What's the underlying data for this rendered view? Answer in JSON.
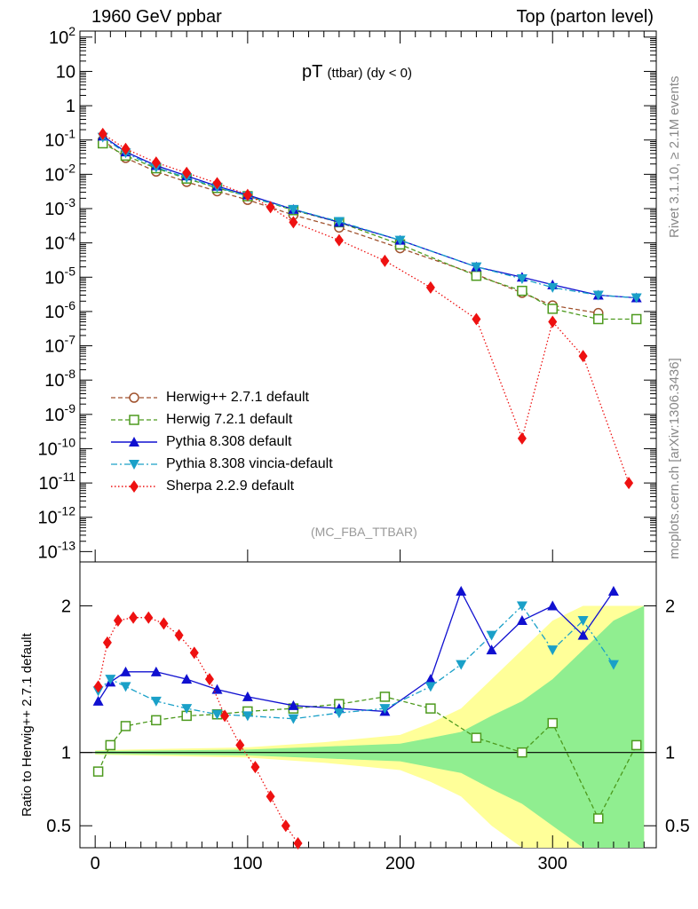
{
  "header": {
    "left": "1960 GeV ppbar",
    "right": "Top (parton level)"
  },
  "side": {
    "rivet": "Rivet 3.1.10, ≥ 2.1M events",
    "mcplots": "mcplots.cern.ch [arXiv:1306.3436]"
  },
  "title": {
    "main": "pT",
    "sub": "(ttbar) (dy < 0)"
  },
  "analysis_label": "(MC_FBA_TTBAR)",
  "ratio_ylabel": "Ratio to Herwig++ 2.7.1 default",
  "legend": [
    {
      "label": "Herwig++ 2.7.1 default",
      "color": "#a0522d",
      "marker": "circle-open",
      "line": "dashed"
    },
    {
      "label": "Herwig 7.2.1 default",
      "color": "#4d9a1e",
      "marker": "square-open",
      "line": "dashed"
    },
    {
      "label": "Pythia 8.308 default",
      "color": "#1010d0",
      "marker": "triangle-up",
      "line": "solid"
    },
    {
      "label": "Pythia 8.308 vincia-default",
      "color": "#1aa0c8",
      "marker": "triangle-down",
      "line": "dashdot"
    },
    {
      "label": "Sherpa 2.2.9 default",
      "color": "#ee1111",
      "marker": "diamond",
      "line": "dotted"
    }
  ],
  "chart_data": {
    "type": "line",
    "xlim": [
      -10,
      368
    ],
    "x_ticks": [
      "0",
      "100",
      "200",
      "300"
    ],
    "main": {
      "ylog": true,
      "ylim": [
        5e-14,
        150
      ],
      "y_ticks": [
        "10^-13",
        "10^-12",
        "10^-11",
        "10^-10",
        "10^-9",
        "10^-8",
        "10^-7",
        "10^-6",
        "10^-5",
        "10^-4",
        "10^-3",
        "10^-2",
        "10^-1",
        "1",
        "10",
        "10^2"
      ]
    },
    "ratio": {
      "ylim": [
        0.35,
        2.3
      ],
      "y_ticks": [
        "0.5",
        "1",
        "2"
      ],
      "reference": 1
    },
    "series": [
      {
        "name": "Herwig++ 2.7.1 default",
        "x": [
          5,
          20,
          40,
          60,
          80,
          100,
          130,
          160,
          200,
          250,
          280,
          300,
          330
        ],
        "y": [
          0.1,
          0.03,
          0.012,
          0.006,
          0.0032,
          0.0018,
          0.00065,
          0.00028,
          7e-05,
          1.2e-05,
          3.5e-06,
          1.5e-06,
          9e-07
        ]
      },
      {
        "name": "Herwig 7.2.1 default",
        "x": [
          5,
          20,
          40,
          60,
          80,
          100,
          130,
          160,
          200,
          250,
          280,
          300,
          330,
          355
        ],
        "y": [
          0.08,
          0.035,
          0.015,
          0.0075,
          0.004,
          0.0023,
          0.0009,
          0.0004,
          9e-05,
          1.1e-05,
          4e-06,
          1.2e-06,
          6e-07,
          6e-07
        ]
      },
      {
        "name": "Pythia 8.308 default",
        "x": [
          5,
          20,
          40,
          60,
          80,
          100,
          130,
          160,
          200,
          250,
          280,
          300,
          330,
          355
        ],
        "y": [
          0.13,
          0.045,
          0.018,
          0.009,
          0.0045,
          0.0025,
          0.00095,
          0.0004,
          0.00012,
          2e-05,
          1e-05,
          6e-06,
          3e-06,
          2.5e-06
        ]
      },
      {
        "name": "Pythia 8.308 vincia-default",
        "x": [
          5,
          20,
          40,
          60,
          80,
          100,
          130,
          160,
          200,
          250,
          280,
          300,
          330,
          355
        ],
        "y": [
          0.12,
          0.042,
          0.016,
          0.008,
          0.0042,
          0.0023,
          0.00095,
          0.00042,
          0.00012,
          2e-05,
          9e-06,
          5e-06,
          3e-06,
          2.5e-06
        ]
      },
      {
        "name": "Sherpa 2.2.9 default",
        "x": [
          5,
          20,
          40,
          60,
          80,
          100,
          115,
          130,
          160,
          190,
          220,
          250,
          280,
          300,
          320,
          350
        ],
        "y": [
          0.15,
          0.055,
          0.022,
          0.011,
          0.0055,
          0.0025,
          0.0011,
          0.0004,
          0.00012,
          3e-05,
          5e-06,
          6e-07,
          2e-10,
          5e-07,
          5e-08,
          1e-11
        ]
      }
    ],
    "ratio_series": [
      {
        "name": "Herwig 7.2.1 default",
        "x": [
          2,
          10,
          20,
          40,
          60,
          80,
          100,
          130,
          160,
          190,
          220,
          250,
          280,
          300,
          330,
          355
        ],
        "y": [
          0.87,
          1.05,
          1.18,
          1.22,
          1.25,
          1.26,
          1.28,
          1.3,
          1.33,
          1.38,
          1.3,
          1.1,
          1.0,
          1.2,
          0.55,
          1.05
        ]
      },
      {
        "name": "Pythia 8.308 default",
        "x": [
          2,
          10,
          20,
          40,
          60,
          80,
          100,
          130,
          160,
          190,
          220,
          240,
          260,
          280,
          300,
          320,
          340
        ],
        "y": [
          1.35,
          1.48,
          1.55,
          1.55,
          1.5,
          1.43,
          1.38,
          1.32,
          1.3,
          1.28,
          1.5,
          2.1,
          1.7,
          1.9,
          2.0,
          1.8,
          2.1
        ]
      },
      {
        "name": "Pythia 8.308 vincia-default",
        "x": [
          2,
          10,
          20,
          40,
          60,
          80,
          100,
          130,
          160,
          190,
          220,
          240,
          260,
          280,
          300,
          320,
          340
        ],
        "y": [
          1.42,
          1.5,
          1.45,
          1.35,
          1.3,
          1.26,
          1.25,
          1.23,
          1.27,
          1.3,
          1.45,
          1.6,
          1.8,
          2.0,
          1.7,
          1.9,
          1.6
        ]
      },
      {
        "name": "Sherpa 2.2.9 default",
        "x": [
          2,
          8,
          15,
          25,
          35,
          45,
          55,
          65,
          75,
          85,
          95,
          105,
          115,
          125,
          133
        ],
        "y": [
          1.45,
          1.75,
          1.9,
          1.92,
          1.92,
          1.88,
          1.8,
          1.68,
          1.5,
          1.25,
          1.05,
          0.9,
          0.7,
          0.5,
          0.38
        ]
      }
    ],
    "mc_bands": {
      "x": [
        0,
        50,
        100,
        150,
        200,
        220,
        240,
        260,
        280,
        300,
        320,
        340,
        360
      ],
      "inner_half": [
        0.01,
        0.015,
        0.02,
        0.04,
        0.06,
        0.1,
        0.14,
        0.25,
        0.35,
        0.5,
        0.7,
        0.9,
        1.0
      ],
      "outer_half": [
        0.015,
        0.025,
        0.035,
        0.07,
        0.12,
        0.2,
        0.3,
        0.5,
        0.7,
        0.9,
        1.0,
        1.0,
        1.0
      ]
    }
  }
}
